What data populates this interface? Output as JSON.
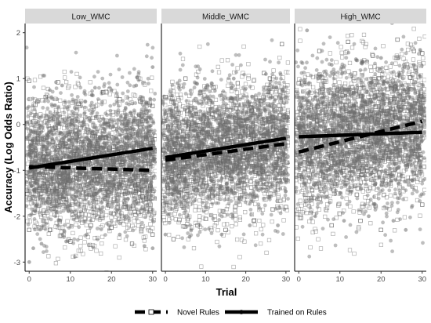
{
  "chart_data": {
    "type": "scatter",
    "facets": [
      "Low_WMC",
      "Middle_WMC",
      "High_WMC"
    ],
    "xlabel": "Trial",
    "ylabel": "Accuracy (Log Odds Ratio)",
    "xlim": [
      -1,
      31
    ],
    "ylim": [
      -3.2,
      2.2
    ],
    "x_ticks": [
      0,
      10,
      20,
      30
    ],
    "y_ticks": [
      -3,
      -2,
      -1,
      0,
      1,
      2
    ],
    "legend": {
      "position": "bottom"
    },
    "series": [
      {
        "name": "Novel Rules",
        "marker": "open-square",
        "line": "dashed",
        "fit": {
          "Low_WMC": [
            [
              0,
              -0.92
            ],
            [
              30,
              -1.0
            ]
          ],
          "Middle_WMC": [
            [
              0,
              -0.78
            ],
            [
              30,
              -0.42
            ]
          ],
          "High_WMC": [
            [
              0,
              -0.6
            ],
            [
              30,
              0.07
            ]
          ]
        },
        "points": {
          "Low_WMC": [
            [
              0,
              0.95
            ],
            [
              0,
              -2.3
            ],
            [
              2,
              0.5
            ],
            [
              4,
              0.6
            ],
            [
              5,
              -2.3
            ],
            [
              7,
              0.92
            ],
            [
              10,
              -2.55
            ],
            [
              12,
              0.45
            ],
            [
              15,
              -2.2
            ],
            [
              18,
              0.7
            ],
            [
              20,
              -2.25
            ],
            [
              22,
              0.55
            ],
            [
              25,
              -2.6
            ],
            [
              27,
              0.5
            ],
            [
              30,
              0.4
            ],
            [
              30,
              -2.4
            ]
          ],
          "Middle_WMC": [
            [
              0,
              0.6
            ],
            [
              2,
              -2.5
            ],
            [
              5,
              1.0
            ],
            [
              8,
              -2.2
            ],
            [
              12,
              0.8
            ],
            [
              15,
              -2.3
            ],
            [
              18,
              0.9
            ],
            [
              22,
              -2.1
            ],
            [
              26,
              1.0
            ],
            [
              29,
              1.75
            ],
            [
              30,
              -1.8
            ]
          ],
          "High_WMC": [
            [
              0,
              0.9
            ],
            [
              5,
              1.6
            ],
            [
              8,
              -2.2
            ],
            [
              12,
              1.8
            ],
            [
              15,
              -2.1
            ],
            [
              18,
              1.5
            ],
            [
              20,
              -2.3
            ],
            [
              24,
              1.85
            ],
            [
              28,
              1.6
            ],
            [
              30,
              1.55
            ],
            [
              30,
              -1.75
            ]
          ]
        }
      },
      {
        "name": "Trained on Rules",
        "marker": "filled-circle",
        "line": "solid",
        "fit": {
          "Low_WMC": [
            [
              0,
              -0.95
            ],
            [
              30,
              -0.52
            ]
          ],
          "Middle_WMC": [
            [
              0,
              -0.72
            ],
            [
              30,
              -0.3
            ]
          ],
          "High_WMC": [
            [
              0,
              -0.27
            ],
            [
              30,
              -0.17
            ]
          ]
        },
        "points": {
          "Low_WMC": [
            [
              0,
              -3.0
            ],
            [
              1,
              -2.7
            ],
            [
              3,
              -2.6
            ],
            [
              5,
              0.75
            ],
            [
              8,
              0.85
            ],
            [
              9,
              -2.55
            ],
            [
              14,
              -2.4
            ],
            [
              16,
              0.8
            ],
            [
              20,
              0.75
            ],
            [
              22,
              -2.4
            ],
            [
              26,
              0.85
            ],
            [
              28,
              -2.65
            ],
            [
              30,
              1.25
            ],
            [
              30,
              -2.7
            ]
          ],
          "Middle_WMC": [
            [
              0,
              -2.4
            ],
            [
              3,
              0.9
            ],
            [
              6,
              -2.45
            ],
            [
              10,
              0.8
            ],
            [
              14,
              -2.4
            ],
            [
              17,
              1.0
            ],
            [
              21,
              -2.2
            ],
            [
              25,
              1.1
            ],
            [
              28,
              -2.2
            ]
          ],
          "High_WMC": [
            [
              2,
              2.05
            ],
            [
              4,
              -2.0
            ],
            [
              8,
              1.3
            ],
            [
              11,
              -2.1
            ],
            [
              14,
              1.4
            ],
            [
              17,
              -2.0
            ],
            [
              20,
              1.45
            ],
            [
              23,
              -2.1
            ],
            [
              26,
              -2.3
            ],
            [
              28,
              1.3
            ]
          ]
        }
      }
    ]
  }
}
